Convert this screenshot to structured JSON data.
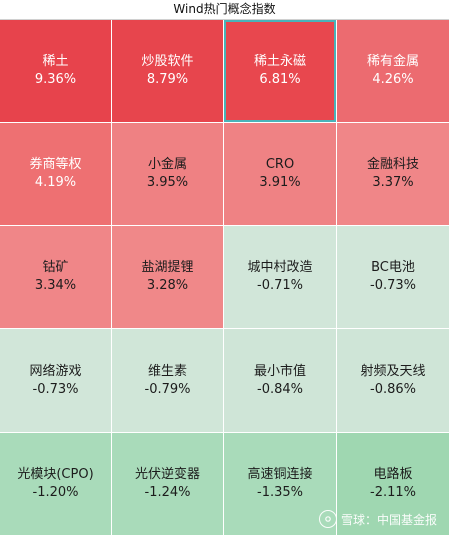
{
  "title": "Wind热门概念指数",
  "colors": {
    "strong_red": "#e7434c",
    "mid_red": "#ee6f73",
    "light_red": "#f08486",
    "pale_green": "#d1e6d9",
    "mint_green": "#a7d9b8",
    "selected_border": "#49b3b9"
  },
  "tiles": [
    {
      "name": "稀土",
      "pct": "9.36%",
      "color": "#e7434c",
      "text": "dark"
    },
    {
      "name": "炒股软件",
      "pct": "8.79%",
      "color": "#e7454d",
      "text": "dark"
    },
    {
      "name": "稀土永磁",
      "pct": "6.81%",
      "color": "#e8474e",
      "text": "dark",
      "selected": true
    },
    {
      "name": "稀有金属",
      "pct": "4.26%",
      "color": "#ec6b70",
      "text": "dark"
    },
    {
      "name": "券商等权",
      "pct": "4.19%",
      "color": "#ee7072",
      "text": "dark"
    },
    {
      "name": "小金属",
      "pct": "3.95%",
      "color": "#ef8183",
      "text": "light"
    },
    {
      "name": "CRO",
      "pct": "3.91%",
      "color": "#ef8284",
      "text": "light"
    },
    {
      "name": "金融科技",
      "pct": "3.37%",
      "color": "#f08688",
      "text": "light"
    },
    {
      "name": "钴矿",
      "pct": "3.34%",
      "color": "#f08688",
      "text": "light"
    },
    {
      "name": "盐湖提锂",
      "pct": "3.28%",
      "color": "#f08889",
      "text": "light"
    },
    {
      "name": "城中村改造",
      "pct": "-0.71%",
      "color": "#d1e6d9",
      "text": "light"
    },
    {
      "name": "BC电池",
      "pct": "-0.73%",
      "color": "#d1e6d9",
      "text": "light"
    },
    {
      "name": "网络游戏",
      "pct": "-0.73%",
      "color": "#d1e6d9",
      "text": "light"
    },
    {
      "name": "维生素",
      "pct": "-0.79%",
      "color": "#d0e6d8",
      "text": "light"
    },
    {
      "name": "最小市值",
      "pct": "-0.84%",
      "color": "#cfe5d7",
      "text": "light"
    },
    {
      "name": "射频及天线",
      "pct": "-0.86%",
      "color": "#cfe5d7",
      "text": "light"
    },
    {
      "name": "光模块(CPO)",
      "pct": "-1.20%",
      "color": "#a9dbba",
      "text": "light"
    },
    {
      "name": "光伏逆变器",
      "pct": "-1.24%",
      "color": "#a9dbba",
      "text": "light"
    },
    {
      "name": "高速铜连接",
      "pct": "-1.35%",
      "color": "#a9dbba",
      "text": "light"
    },
    {
      "name": "电路板",
      "pct": "-2.11%",
      "color": "#9fd7b1",
      "text": "light"
    }
  ],
  "watermark": {
    "text": "雪球：中国基金报",
    "icon": "snowball-logo-icon"
  }
}
